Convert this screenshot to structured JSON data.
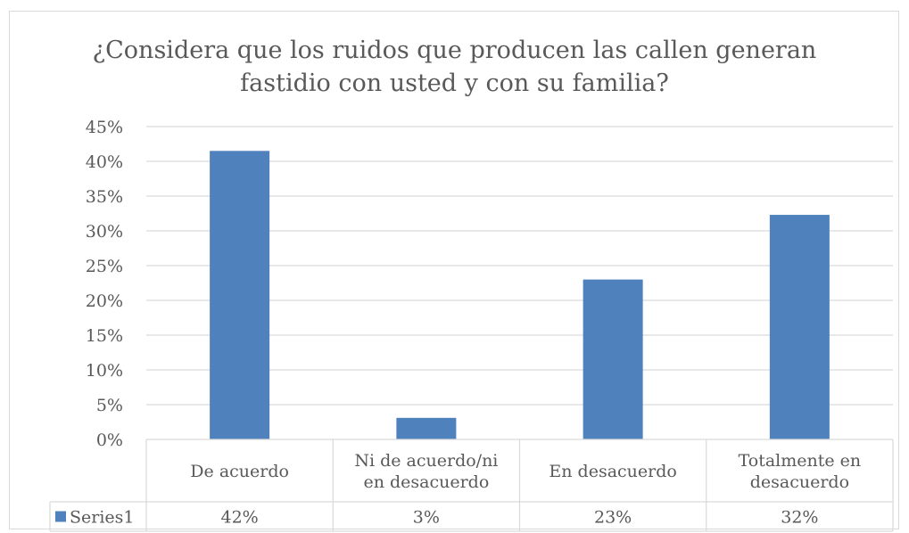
{
  "chart_data": {
    "type": "bar",
    "title": "¿Considera que los ruidos que producen las callen generan fastidio con usted y con su familia?",
    "title_lines": [
      "¿Considera que los ruidos que producen las callen generan",
      "fastidio con usted y con su familia?"
    ],
    "categories": [
      {
        "lines": [
          "De acuerdo"
        ]
      },
      {
        "lines": [
          "Ni de acuerdo/ni",
          "en desacuerdo"
        ]
      },
      {
        "lines": [
          "En desacuerdo"
        ]
      },
      {
        "lines": [
          "Totalmente en",
          "desacuerdo"
        ]
      }
    ],
    "series": [
      {
        "name": "Series1",
        "values": [
          41.5,
          3.1,
          23.0,
          32.3
        ],
        "labels": [
          "42%",
          "3%",
          "23%",
          "32%"
        ],
        "color": "#4f81bd"
      }
    ],
    "yticks": [
      "0%",
      "5%",
      "10%",
      "15%",
      "20%",
      "25%",
      "30%",
      "35%",
      "40%",
      "45%"
    ],
    "ylim": [
      0,
      45
    ],
    "grid": true,
    "legend": "data-table"
  }
}
